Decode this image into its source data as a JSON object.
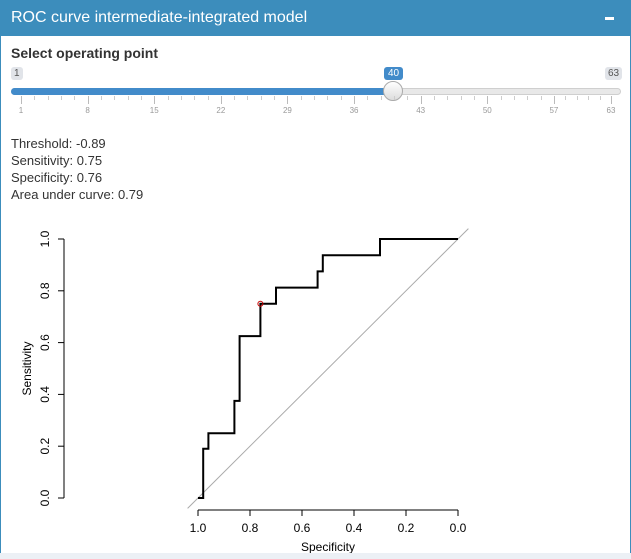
{
  "box": {
    "title": "ROC curve intermediate-integrated model",
    "collapse_icon": "minus-icon"
  },
  "slider": {
    "label": "Select operating point",
    "min": "1",
    "max": "63",
    "value": "40",
    "value_fraction": 0.629,
    "grid": [
      "1",
      "8",
      "15",
      "22",
      "29",
      "36",
      "43",
      "50",
      "57",
      "63"
    ],
    "accent_color": "#428bca"
  },
  "stats": {
    "threshold": "Threshold: -0.89",
    "sensitivity": "Sensitivity: 0.75",
    "specificity": "Specificity: 0.76",
    "auc": "Area under curve: 0.79"
  },
  "chart_data": {
    "type": "line",
    "xlabel": "Specificity",
    "ylabel": "Sensitivity",
    "xlim": [
      1.0,
      0.0
    ],
    "ylim": [
      0.0,
      1.0
    ],
    "x_ticks": [
      "1.0",
      "0.8",
      "0.6",
      "0.4",
      "0.2",
      "0.0"
    ],
    "y_ticks": [
      "0.0",
      "0.2",
      "0.4",
      "0.6",
      "0.8",
      "1.0"
    ],
    "series": [
      {
        "x": [
          1.0,
          0.98,
          0.98,
          0.96,
          0.96,
          0.86,
          0.86,
          0.84,
          0.84,
          0.76,
          0.76,
          0.7,
          0.7,
          0.54,
          0.54,
          0.52,
          0.52,
          0.3,
          0.3,
          0.0
        ],
        "y": [
          0.0,
          0.0,
          0.19,
          0.19,
          0.25,
          0.25,
          0.375,
          0.375,
          0.625,
          0.625,
          0.75,
          0.75,
          0.8125,
          0.8125,
          0.875,
          0.875,
          0.9375,
          0.9375,
          1.0,
          1.0
        ]
      }
    ],
    "diagonal": true,
    "operating_point": {
      "specificity": 0.76,
      "sensitivity": 0.75
    },
    "curve_color": "#000000",
    "diagonal_color": "#aaaaaa",
    "point_color": "#cc0000"
  }
}
